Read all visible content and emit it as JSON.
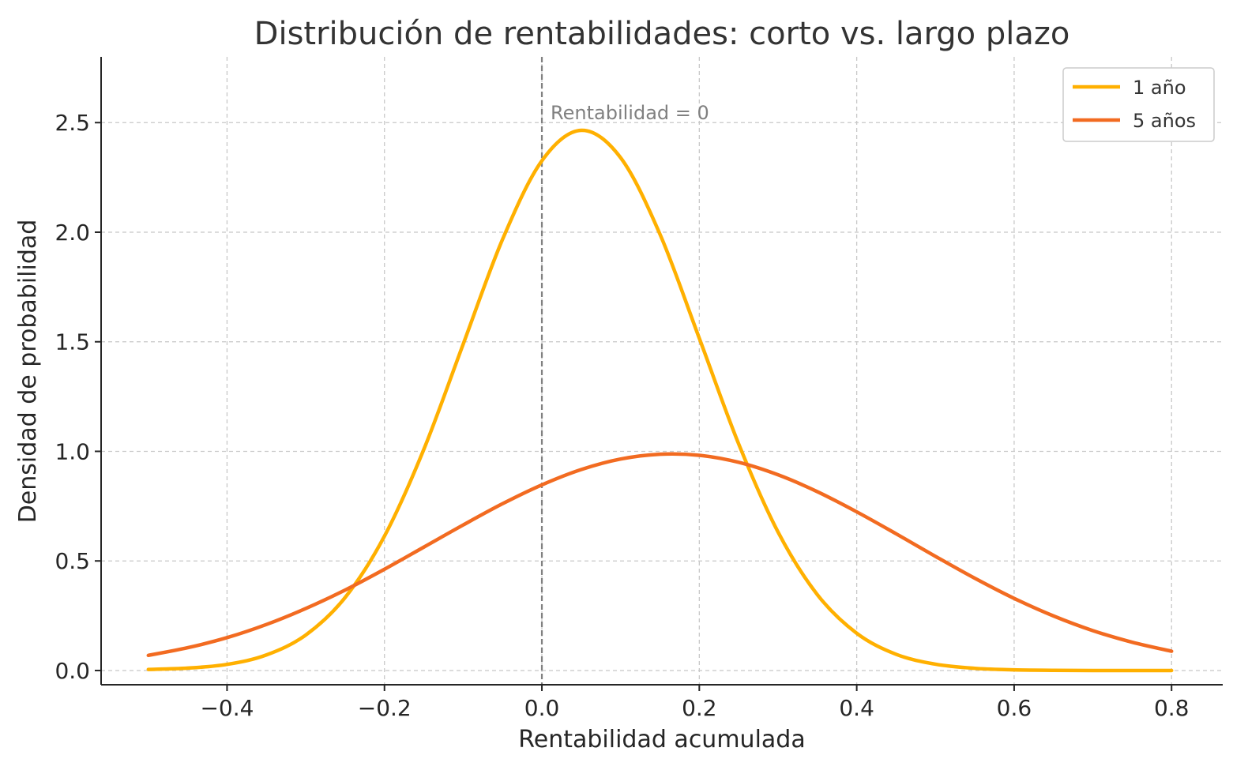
{
  "chart_data": {
    "type": "line",
    "title": "Distribución de rentabilidades: corto vs. largo plazo",
    "xlabel": "Rentabilidad acumulada",
    "ylabel": "Densidad de probabilidad",
    "xlim": [
      -0.56,
      0.865
    ],
    "ylim": [
      -0.065,
      2.8
    ],
    "x_ticks": [
      -0.4,
      -0.2,
      0.0,
      0.2,
      0.4,
      0.6,
      0.8
    ],
    "x_tick_labels": [
      "−0.4",
      "−0.2",
      "0.0",
      "0.2",
      "0.4",
      "0.6",
      "0.8"
    ],
    "y_ticks": [
      0.0,
      0.5,
      1.0,
      1.5,
      2.0,
      2.5
    ],
    "y_tick_labels": [
      "0.0",
      "0.5",
      "1.0",
      "1.5",
      "2.0",
      "2.5"
    ],
    "grid": true,
    "legend_position": "top-right",
    "reference_line": {
      "x": 0,
      "label": "Rentabilidad = 0",
      "color": "#808080"
    },
    "x": [
      -0.5,
      -0.45,
      -0.4,
      -0.35,
      -0.3,
      -0.25,
      -0.2,
      -0.15,
      -0.1,
      -0.05,
      0.0,
      0.05,
      0.1,
      0.15,
      0.2,
      0.25,
      0.3,
      0.35,
      0.4,
      0.45,
      0.5,
      0.55,
      0.6,
      0.65,
      0.7,
      0.75,
      0.8
    ],
    "series": [
      {
        "name": "1 año",
        "color": "#FFB000",
        "values": [
          0.005,
          0.011,
          0.028,
          0.071,
          0.162,
          0.333,
          0.613,
          1.009,
          1.489,
          1.967,
          2.326,
          2.465,
          2.34,
          1.991,
          1.516,
          1.034,
          0.632,
          0.346,
          0.17,
          0.074,
          0.029,
          0.01,
          0.003,
          0.001,
          0.0,
          0.0,
          0.0
        ]
      },
      {
        "name": "5 años",
        "color": "#F26B21",
        "values": [
          0.069,
          0.104,
          0.15,
          0.21,
          0.283,
          0.367,
          0.462,
          0.563,
          0.664,
          0.761,
          0.847,
          0.917,
          0.965,
          0.987,
          0.982,
          0.95,
          0.893,
          0.816,
          0.724,
          0.624,
          0.521,
          0.421,
          0.329,
          0.249,
          0.182,
          0.129,
          0.088
        ]
      }
    ]
  }
}
